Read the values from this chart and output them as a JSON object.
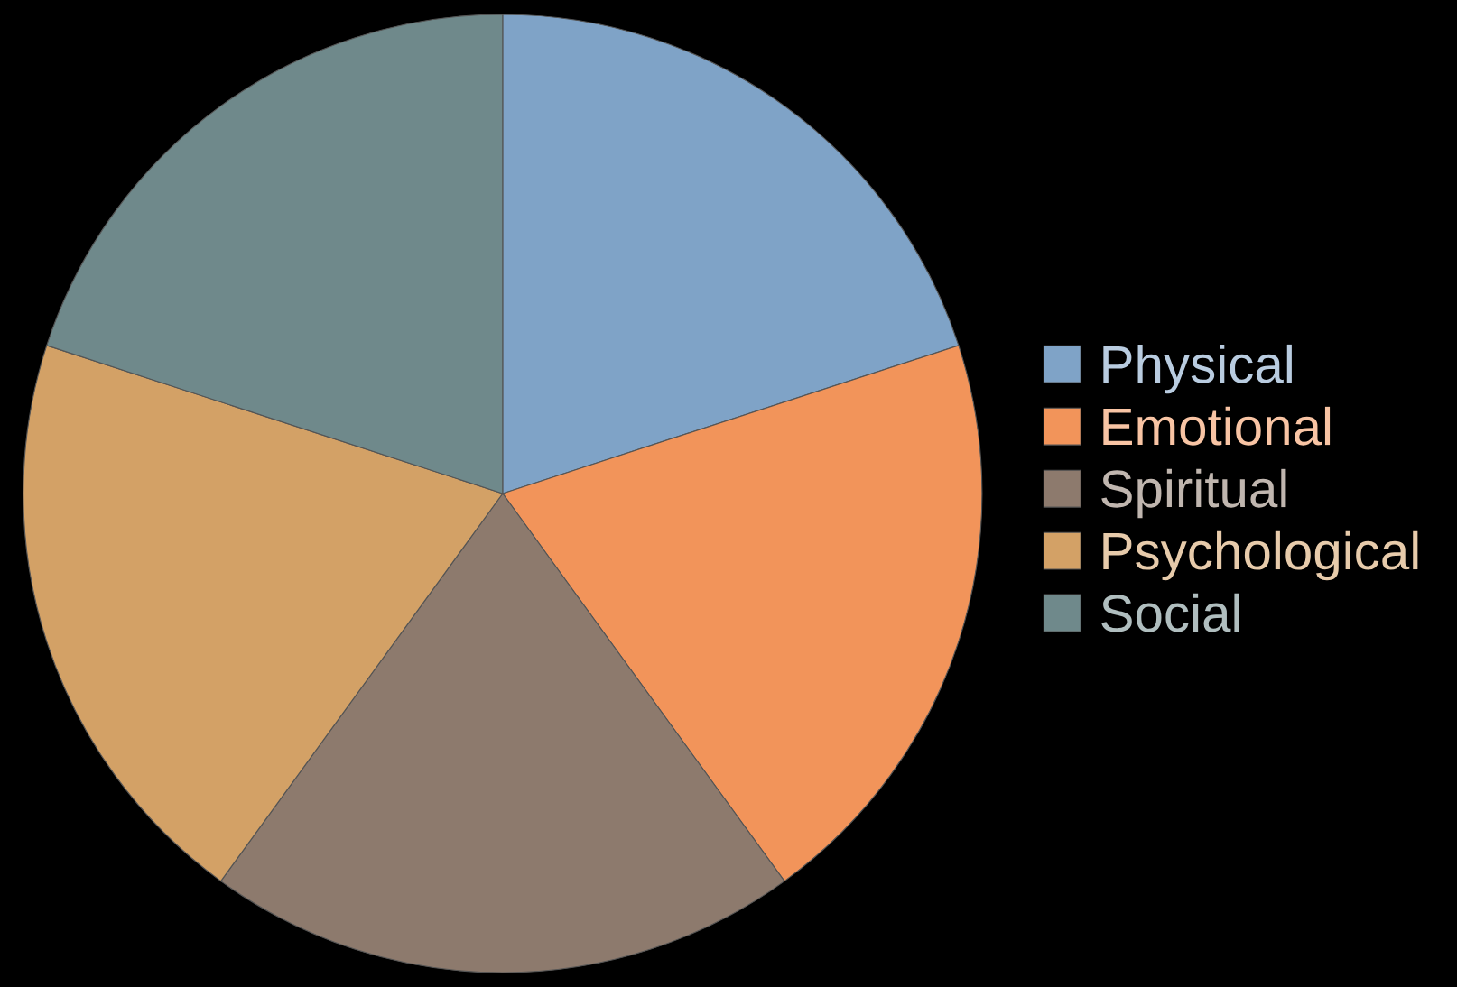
{
  "chart_data": {
    "type": "pie",
    "categories": [
      "Physical",
      "Emotional",
      "Spiritual",
      "Psychological",
      "Social"
    ],
    "values": [
      20,
      20,
      20,
      20,
      20
    ],
    "colors": [
      "#7fa3c7",
      "#f2945a",
      "#8d7a6d",
      "#d3a166",
      "#6f898b"
    ],
    "legend": "right"
  }
}
